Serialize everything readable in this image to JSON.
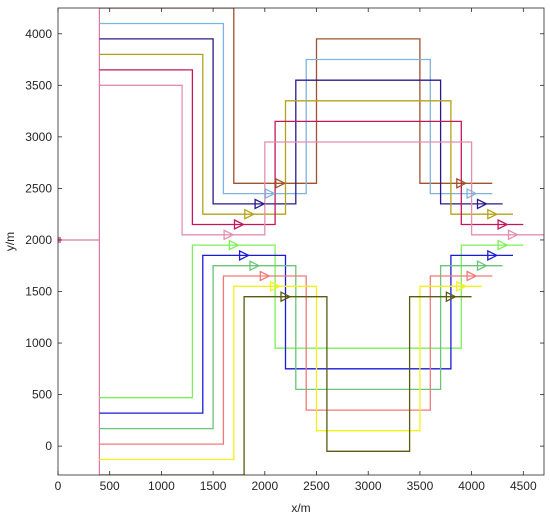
{
  "chart_data": {
    "type": "line",
    "xlabel": "x/m",
    "ylabel": "y/m",
    "xlim": [
      0,
      4700
    ],
    "ylim": [
      -280,
      4250
    ],
    "xticks": [
      0,
      500,
      1000,
      1500,
      2000,
      2500,
      3000,
      3500,
      4000,
      4500
    ],
    "yticks": [
      0,
      500,
      1000,
      1500,
      2000,
      2500,
      3000,
      3500,
      4000
    ],
    "grid": false,
    "box": true,
    "origin_point": {
      "x": 0,
      "y": 2000,
      "color": "#e377a4"
    },
    "trunk": {
      "x": [
        0,
        400
      ],
      "y": [
        2000,
        2000
      ],
      "color": "#e377a4"
    },
    "spine": {
      "x": [
        400,
        400
      ],
      "y": [
        -280,
        4250
      ],
      "color": "#e377a4"
    },
    "series": [
      {
        "color": "#a0522d",
        "x": [
          400,
          1700,
          1700,
          2250,
          2250,
          2500,
          2500,
          3500,
          3500,
          4200
        ],
        "y": [
          4250,
          4250,
          2550,
          2550,
          2550,
          2550,
          3950,
          3950,
          2550,
          2550
        ],
        "markers": [
          {
            "x": 2150,
            "y": 2550
          },
          {
            "x": 3900,
            "y": 2550
          }
        ]
      },
      {
        "color": "#7fb3e0",
        "x": [
          400,
          1600,
          1600,
          2150,
          2150,
          2400,
          2400,
          3600,
          3600,
          4200
        ],
        "y": [
          4100,
          4100,
          2450,
          2450,
          2450,
          2450,
          3750,
          3750,
          2450,
          2450
        ],
        "markers": [
          {
            "x": 2050,
            "y": 2450
          },
          {
            "x": 4000,
            "y": 2450
          }
        ]
      },
      {
        "color": "#2a1a8c",
        "x": [
          400,
          1500,
          1500,
          2050,
          2050,
          2300,
          2300,
          3700,
          3700,
          4300
        ],
        "y": [
          3950,
          3950,
          2350,
          2350,
          2350,
          2350,
          3550,
          3550,
          2350,
          2350
        ],
        "markers": [
          {
            "x": 1950,
            "y": 2350
          },
          {
            "x": 4100,
            "y": 2350
          }
        ]
      },
      {
        "color": "#b5a21c",
        "x": [
          400,
          1400,
          1400,
          1950,
          1950,
          2200,
          2200,
          3800,
          3800,
          4400
        ],
        "y": [
          3800,
          3800,
          2250,
          2250,
          2250,
          2250,
          3350,
          3350,
          2250,
          2250
        ],
        "markers": [
          {
            "x": 1850,
            "y": 2250
          },
          {
            "x": 4200,
            "y": 2250
          }
        ]
      },
      {
        "color": "#c2185b",
        "x": [
          400,
          1300,
          1300,
          1850,
          1850,
          2100,
          2100,
          3900,
          3900,
          4500
        ],
        "y": [
          3650,
          3650,
          2150,
          2150,
          2150,
          2150,
          3150,
          3150,
          2150,
          2150
        ],
        "markers": [
          {
            "x": 1750,
            "y": 2150
          },
          {
            "x": 4300,
            "y": 2150
          }
        ]
      },
      {
        "color": "#e48fb0",
        "x": [
          400,
          1200,
          1200,
          1750,
          1750,
          2000,
          2000,
          4000,
          4000,
          4700
        ],
        "y": [
          3500,
          3500,
          2050,
          2050,
          2050,
          2050,
          2950,
          2950,
          2050,
          2050
        ],
        "markers": [
          {
            "x": 1650,
            "y": 2050
          },
          {
            "x": 4400,
            "y": 2050
          }
        ]
      },
      {
        "color": "#7cf05a",
        "x": [
          400,
          1300,
          1300,
          2100,
          2100,
          3900,
          3900,
          4500
        ],
        "y": [
          470,
          470,
          1950,
          1950,
          950,
          950,
          1950,
          1950
        ],
        "markers": [
          {
            "x": 1700,
            "y": 1950
          },
          {
            "x": 4300,
            "y": 1950
          }
        ]
      },
      {
        "color": "#1a1ad9",
        "x": [
          400,
          1400,
          1400,
          2200,
          2200,
          3800,
          3800,
          4400
        ],
        "y": [
          320,
          320,
          1850,
          1850,
          750,
          750,
          1850,
          1850
        ],
        "markers": [
          {
            "x": 1800,
            "y": 1850
          },
          {
            "x": 4200,
            "y": 1850
          }
        ]
      },
      {
        "color": "#6cc47a",
        "x": [
          400,
          1500,
          1500,
          2300,
          2300,
          3700,
          3700,
          4300
        ],
        "y": [
          170,
          170,
          1750,
          1750,
          550,
          550,
          1750,
          1750
        ],
        "markers": [
          {
            "x": 1900,
            "y": 1750
          },
          {
            "x": 4100,
            "y": 1750
          }
        ]
      },
      {
        "color": "#f07a7a",
        "x": [
          400,
          1600,
          1600,
          2400,
          2400,
          3600,
          3600,
          4200
        ],
        "y": [
          20,
          20,
          1650,
          1650,
          350,
          350,
          1650,
          1650
        ],
        "markers": [
          {
            "x": 2000,
            "y": 1650
          },
          {
            "x": 4000,
            "y": 1650
          }
        ]
      },
      {
        "color": "#f2f21a",
        "x": [
          400,
          1700,
          1700,
          2500,
          2500,
          3500,
          3500,
          4100
        ],
        "y": [
          -130,
          -130,
          1550,
          1550,
          150,
          150,
          1550,
          1550
        ],
        "markers": [
          {
            "x": 2100,
            "y": 1550
          },
          {
            "x": 3900,
            "y": 1550
          }
        ]
      },
      {
        "color": "#5a5a10",
        "x": [
          400,
          1800,
          1800,
          2600,
          2600,
          3400,
          3400,
          4000
        ],
        "y": [
          -280,
          -280,
          1450,
          1450,
          -50,
          -50,
          1450,
          1450
        ],
        "markers": [
          {
            "x": 2200,
            "y": 1450
          },
          {
            "x": 3800,
            "y": 1450
          }
        ]
      }
    ]
  }
}
